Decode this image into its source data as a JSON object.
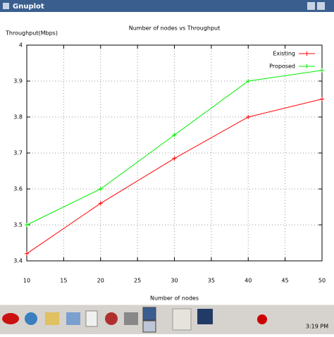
{
  "window": {
    "title": "Gnuplot"
  },
  "taskbar": {
    "clock": "3:19 PM"
  },
  "chart_data": {
    "type": "line",
    "title": "Number of nodes vs Throughput",
    "x_label": "Number of nodes",
    "y_label": "Throughput(Mbps)",
    "x": [
      10,
      20,
      30,
      40,
      50
    ],
    "series": [
      {
        "name": "Existing",
        "color": "#ff0000",
        "values": [
          3.42,
          3.56,
          3.685,
          3.8,
          3.85
        ]
      },
      {
        "name": "Proposed",
        "color": "#00ee00",
        "values": [
          3.5,
          3.6,
          3.75,
          3.9,
          3.93
        ]
      }
    ],
    "xlim": [
      10,
      50
    ],
    "xticks": [
      10,
      15,
      20,
      25,
      30,
      35,
      40,
      45,
      50
    ],
    "ylim": [
      3.4,
      4
    ],
    "yticks": [
      3.4,
      3.5,
      3.6,
      3.7,
      3.8,
      3.9,
      4
    ],
    "grid": true,
    "legend": "top-right"
  }
}
